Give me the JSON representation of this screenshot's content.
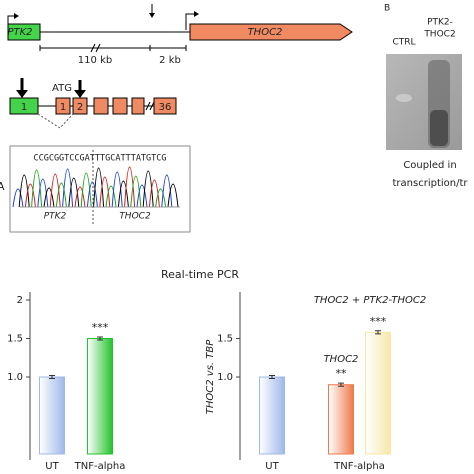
{
  "panel_a": {
    "label": "A",
    "genes": [
      "PTK2",
      "THOC2"
    ],
    "scale": [
      "110 kb",
      "2 kb"
    ],
    "exons": [
      "1",
      "1",
      "2",
      "36"
    ],
    "start_codon": "ATG",
    "sequence": "CCGCGGTCCGATTTGCATTTATGTCG",
    "trace_labels": [
      "PTK2",
      "THOC2"
    ]
  },
  "panel_b": {
    "label": "B",
    "lanes": [
      "CTRL",
      "PTK2-",
      "THOC2"
    ],
    "caption": [
      "Coupled in",
      "transcription/tr"
    ]
  },
  "title": "Real-time PCR",
  "chart_data": [
    {
      "type": "bar",
      "ylim": [
        0,
        2
      ],
      "yticks": [
        {
          "value": 1,
          "label": "1.0"
        },
        1.5,
        2
      ],
      "groups": [
        {
          "category": "UT",
          "bars": [
            {
              "value": 1.0,
              "error": 0.02,
              "color": "#9fb8ea"
            }
          ]
        },
        {
          "category": "TNF-alpha",
          "bars": [
            {
              "value": 1.5,
              "error": 0.02,
              "color": "#22c32a",
              "annotation": "***"
            }
          ]
        }
      ]
    },
    {
      "type": "bar",
      "ylabel": "THOC2 vs. TBP",
      "ylim": [
        0,
        2
      ],
      "yticks": [
        {
          "value": 1,
          "label": "1.0"
        },
        1.5
      ],
      "groups": [
        {
          "category": "UT",
          "bars": [
            {
              "value": 1.0,
              "error": 0.02,
              "color": "#9fb8ea"
            }
          ]
        },
        {
          "category": "TNF-alpha",
          "bars": [
            {
              "name": "THOC2",
              "value": 0.9,
              "error": 0.02,
              "color": "#ee7a4c",
              "annotation": "**"
            },
            {
              "name": "THOC2 + PTK2-THOC2",
              "value": 1.58,
              "error": 0.02,
              "color": "#f7e7a8",
              "annotation": "***"
            }
          ]
        }
      ]
    }
  ]
}
